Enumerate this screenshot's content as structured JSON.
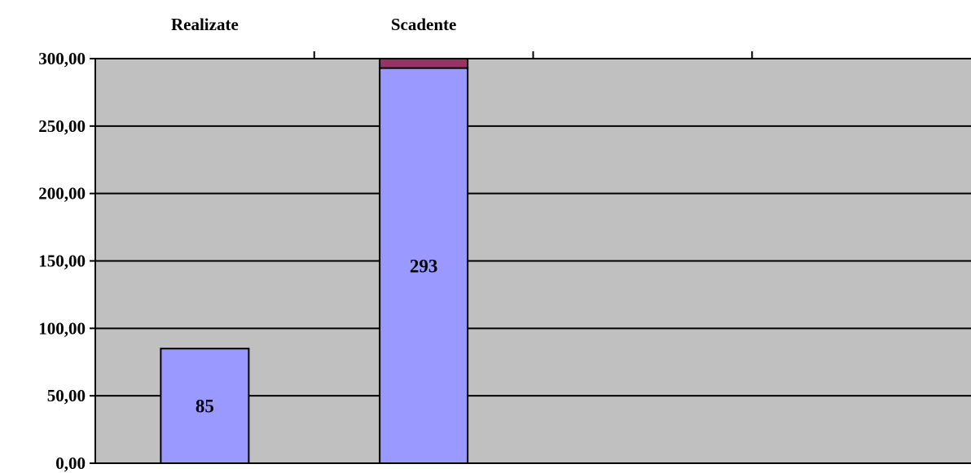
{
  "chart_data": {
    "type": "bar",
    "stacked": true,
    "categories": [
      "Realizate",
      "Scadente",
      "",
      ""
    ],
    "category_axis_position": "top",
    "series": [
      {
        "values": [
          85,
          293,
          null,
          null
        ],
        "color": "#9999ff",
        "data_labels": [
          "85",
          "293",
          "",
          ""
        ]
      },
      {
        "values": [
          0,
          7,
          null,
          null
        ],
        "color": "#993366"
      }
    ],
    "y_ticks": [
      "0,00",
      "50,00",
      "100,00",
      "150,00",
      "200,00",
      "250,00",
      "300,00"
    ],
    "y_tick_values": [
      0,
      50,
      100,
      150,
      200,
      250,
      300
    ],
    "ylim": [
      0,
      300
    ],
    "grid": true,
    "legend": "none",
    "plot_background": "#c0c0c0",
    "gridline_color": "#000000"
  }
}
